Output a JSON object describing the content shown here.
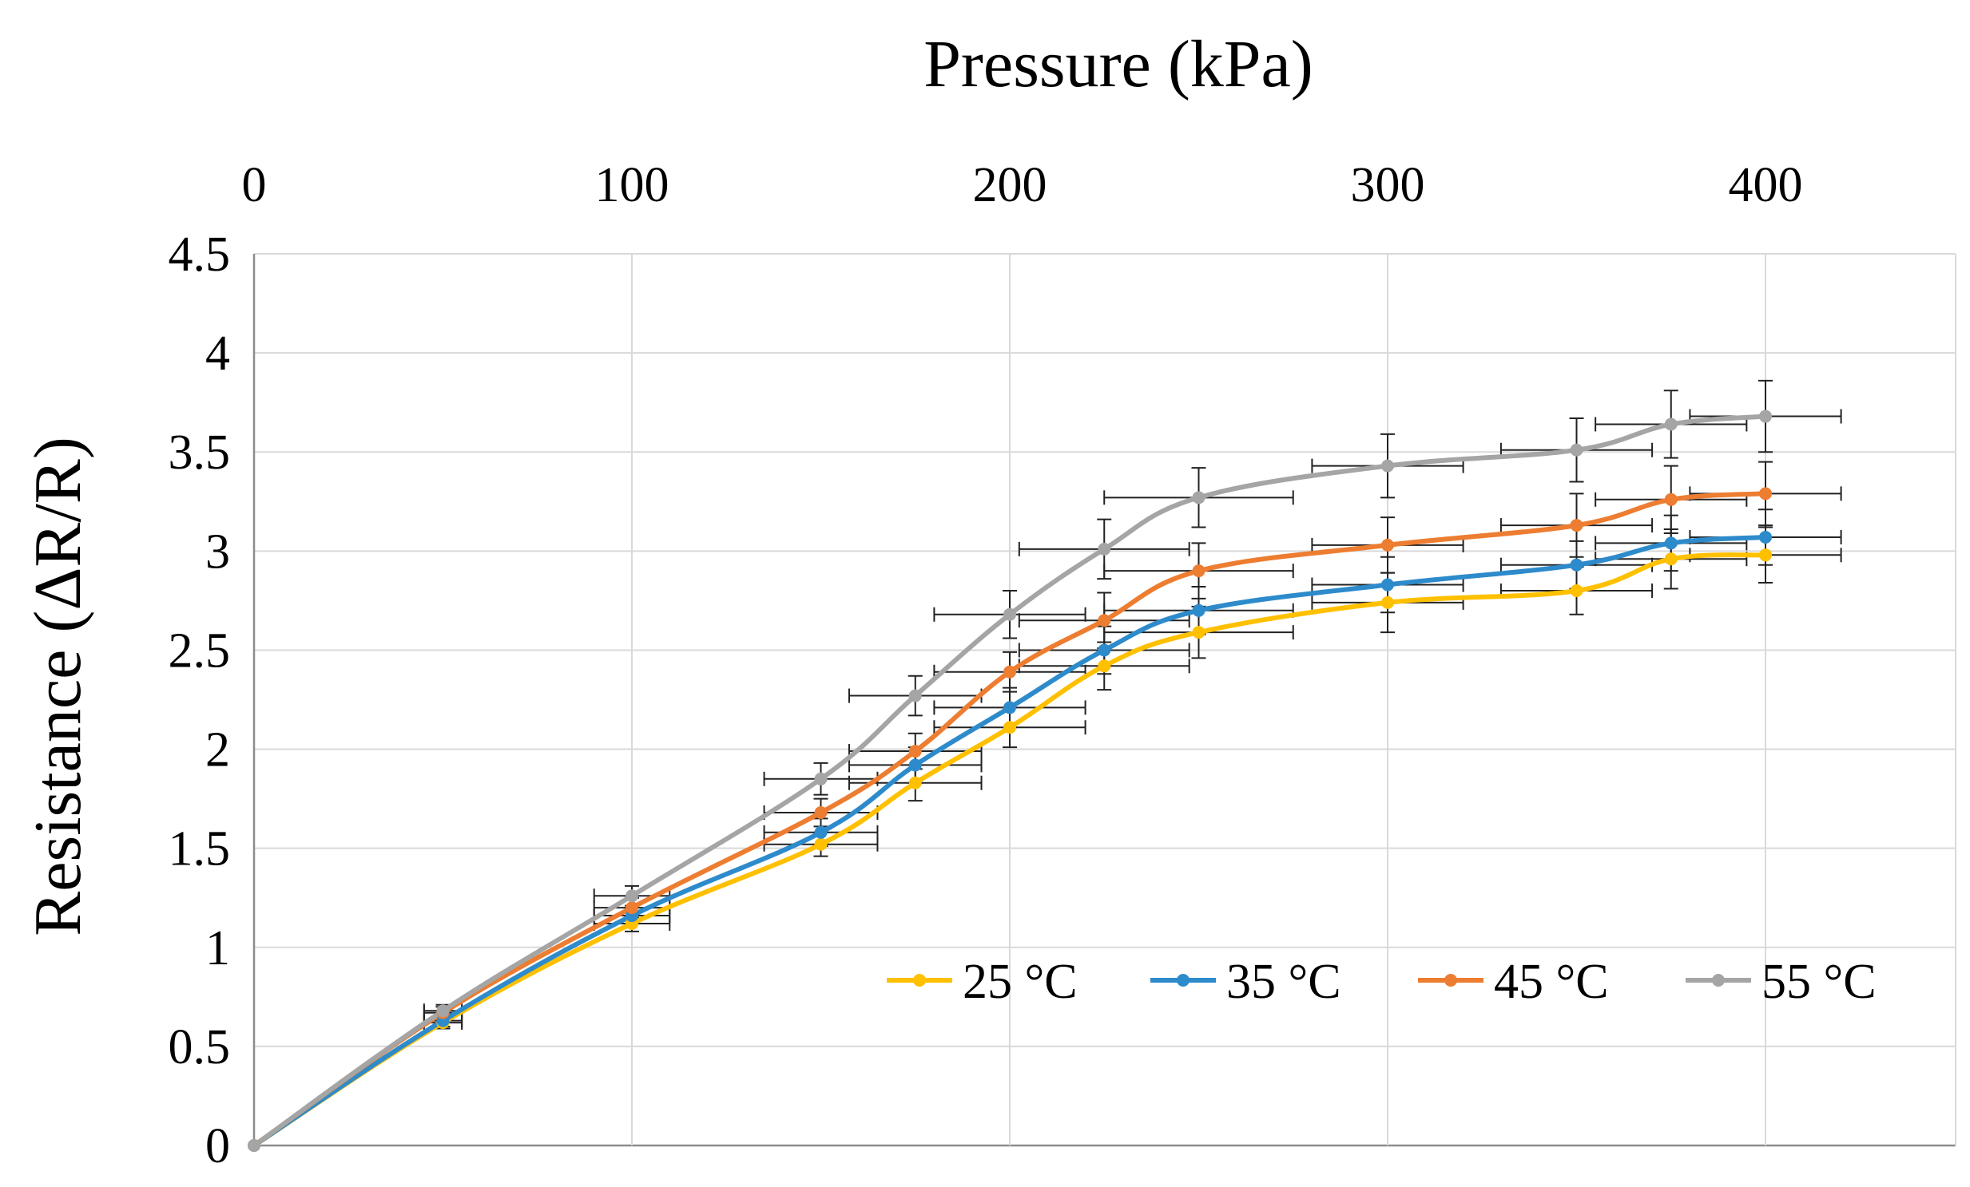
{
  "chart_data": {
    "type": "line",
    "title": "",
    "xlabel": "Pressure (kPa)",
    "ylabel": "Resistance (ΔR/R)",
    "x_axis_position": "top",
    "xlim": [
      0,
      450
    ],
    "ylim": [
      0,
      4.5
    ],
    "x_ticks": [
      0,
      100,
      200,
      300,
      400
    ],
    "y_ticks": [
      0,
      0.5,
      1,
      1.5,
      2,
      2.5,
      3,
      3.5,
      4,
      4.5
    ],
    "grid": true,
    "legend_position": "lower-right",
    "x": [
      0,
      50,
      100,
      150,
      175,
      200,
      225,
      250,
      300,
      350,
      375,
      400
    ],
    "x_error": [
      0,
      5,
      10,
      15,
      17.5,
      20,
      22.5,
      25,
      20,
      20,
      20,
      20
    ],
    "series": [
      {
        "name": "25 °C",
        "color": "#FFC000",
        "values": [
          0,
          0.62,
          1.12,
          1.52,
          1.83,
          2.11,
          2.42,
          2.59,
          2.74,
          2.8,
          2.96,
          2.98
        ],
        "y_error": [
          0,
          0.03,
          0.04,
          0.06,
          0.09,
          0.1,
          0.12,
          0.13,
          0.15,
          0.12,
          0.15,
          0.14
        ]
      },
      {
        "name": "35 °C",
        "color": "#2E8BCB",
        "values": [
          0,
          0.63,
          1.16,
          1.58,
          1.92,
          2.21,
          2.5,
          2.7,
          2.83,
          2.93,
          3.04,
          3.07
        ],
        "y_error": [
          0,
          0.03,
          0.04,
          0.07,
          0.09,
          0.1,
          0.12,
          0.12,
          0.14,
          0.12,
          0.14,
          0.14
        ]
      },
      {
        "name": "45 °C",
        "color": "#ED7D31",
        "values": [
          0,
          0.67,
          1.2,
          1.68,
          1.99,
          2.39,
          2.65,
          2.9,
          3.03,
          3.13,
          3.26,
          3.29
        ],
        "y_error": [
          0,
          0.03,
          0.05,
          0.07,
          0.09,
          0.1,
          0.14,
          0.14,
          0.14,
          0.16,
          0.17,
          0.16
        ]
      },
      {
        "name": "55 °C",
        "color": "#A5A5A5",
        "values": [
          0,
          0.68,
          1.26,
          1.85,
          2.27,
          2.68,
          3.01,
          3.27,
          3.43,
          3.51,
          3.64,
          3.68
        ],
        "y_error": [
          0,
          0.03,
          0.05,
          0.08,
          0.1,
          0.12,
          0.15,
          0.15,
          0.16,
          0.16,
          0.17,
          0.18
        ]
      }
    ]
  }
}
